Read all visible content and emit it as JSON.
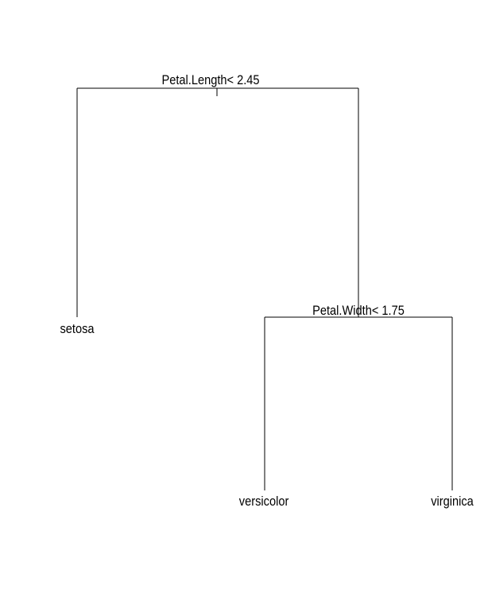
{
  "diagram": {
    "type": "decision-tree",
    "root": {
      "split": "Petal.Length< 2.45",
      "left": {
        "leaf": "setosa"
      },
      "right": {
        "split": "Petal.Width< 1.75",
        "left": {
          "leaf": "versicolor"
        },
        "right": {
          "leaf": "virginica"
        }
      }
    },
    "colors": {
      "line": "#000000",
      "text": "#000000",
      "background": "#ffffff"
    }
  }
}
